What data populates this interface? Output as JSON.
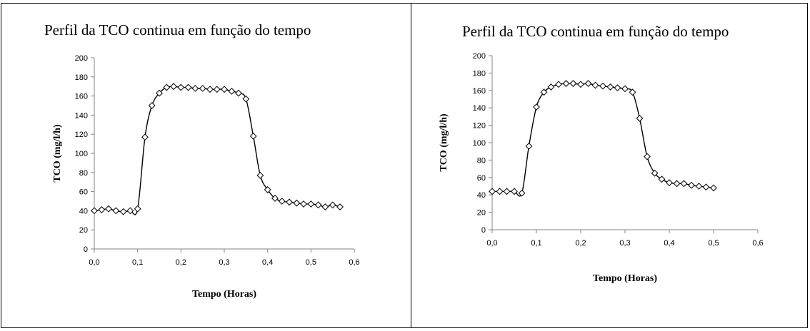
{
  "chart_data": [
    {
      "type": "line",
      "title": "Perfil da TCO continua em função do tempo",
      "xlabel": "Tempo (Horas)",
      "ylabel": "TCO (mg/l/h)",
      "xlim": [
        0,
        0.6
      ],
      "ylim": [
        0,
        200
      ],
      "x_ticks": [
        "0,0",
        "0,1",
        "0,2",
        "0,3",
        "0,4",
        "0,5",
        "0,6"
      ],
      "y_ticks": [
        "0",
        "20",
        "40",
        "60",
        "80",
        "100",
        "120",
        "140",
        "160",
        "180",
        "200"
      ],
      "marker": "diamond",
      "grid": false,
      "legend": "none",
      "series": [
        {
          "x": [
            0.0,
            0.017,
            0.033,
            0.05,
            0.067,
            0.083,
            0.1,
            0.117,
            0.133,
            0.15,
            0.167,
            0.183,
            0.2,
            0.217,
            0.233,
            0.25,
            0.267,
            0.283,
            0.3,
            0.317,
            0.333,
            0.35,
            0.367,
            0.383,
            0.4,
            0.417,
            0.433,
            0.45,
            0.467,
            0.483,
            0.5,
            0.517,
            0.533,
            0.55,
            0.567
          ],
          "y": [
            40,
            41,
            42,
            40,
            39,
            40,
            42,
            117,
            150,
            163,
            169,
            170,
            169,
            169,
            168,
            168,
            167,
            167,
            167,
            165,
            163,
            157,
            118,
            77,
            62,
            53,
            50,
            49,
            48,
            47,
            47,
            46,
            44,
            46,
            44
          ]
        }
      ]
    },
    {
      "type": "line",
      "title": "Perfil da TCO continua em função do tempo",
      "xlabel": "Tempo (Horas)",
      "ylabel": "TCO (mg/l/h)",
      "xlim": [
        0,
        0.6
      ],
      "ylim": [
        0,
        200
      ],
      "x_ticks": [
        "0,0",
        "0,1",
        "0,2",
        "0,3",
        "0,4",
        "0,5",
        "0,6"
      ],
      "y_ticks": [
        "0",
        "20",
        "40",
        "60",
        "80",
        "100",
        "120",
        "140",
        "160",
        "180",
        "200"
      ],
      "marker": "diamond",
      "grid": false,
      "legend": "none",
      "series": [
        {
          "x": [
            0.0,
            0.017,
            0.033,
            0.05,
            0.067,
            0.083,
            0.1,
            0.117,
            0.133,
            0.15,
            0.167,
            0.183,
            0.2,
            0.217,
            0.233,
            0.25,
            0.267,
            0.283,
            0.3,
            0.317,
            0.333,
            0.35,
            0.367,
            0.383,
            0.4,
            0.417,
            0.433,
            0.45,
            0.467,
            0.483,
            0.5
          ],
          "y": [
            44,
            44,
            44,
            44,
            42,
            96,
            141,
            158,
            164,
            167,
            168,
            168,
            167,
            168,
            166,
            165,
            164,
            163,
            162,
            158,
            128,
            84,
            65,
            58,
            54,
            53,
            53,
            51,
            50,
            49,
            48
          ]
        }
      ]
    }
  ]
}
